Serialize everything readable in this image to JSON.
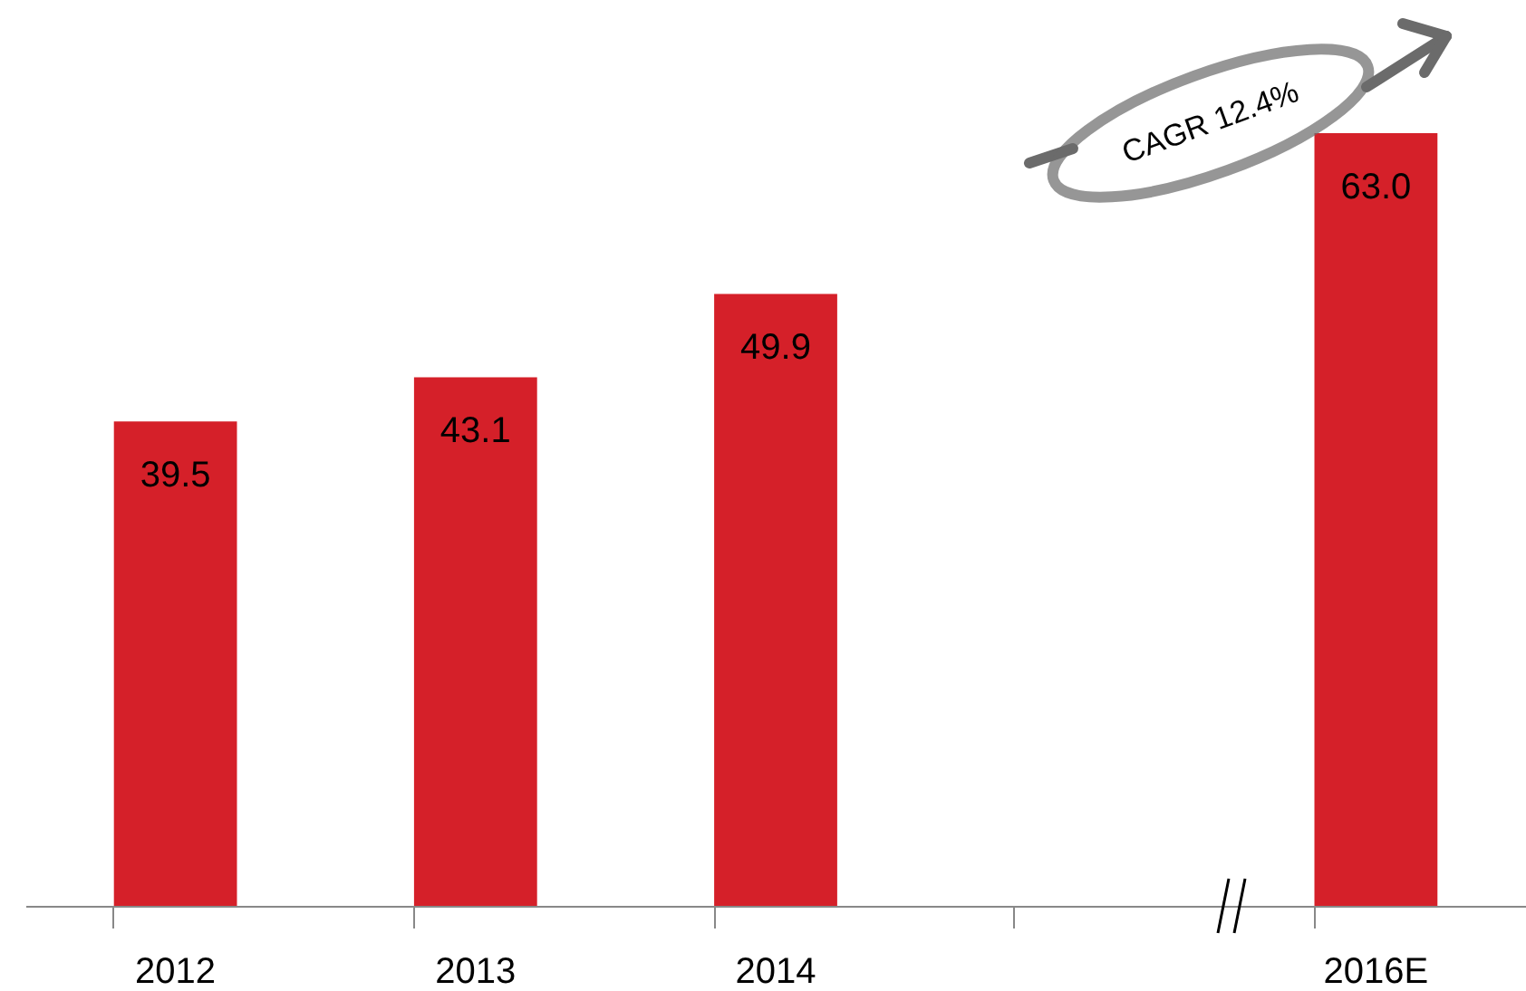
{
  "chart_data": {
    "type": "bar",
    "categories": [
      "2012",
      "2013",
      "2014",
      null,
      "2016E"
    ],
    "values": [
      39.5,
      43.1,
      49.9,
      null,
      63.0
    ],
    "color": "#d52029",
    "value_labels": [
      "39.5",
      "43.1",
      "49.9",
      null,
      "63.0"
    ],
    "grid": false,
    "tick_labels": "x",
    "annotations": [
      "CAGR 12.4%"
    ]
  }
}
